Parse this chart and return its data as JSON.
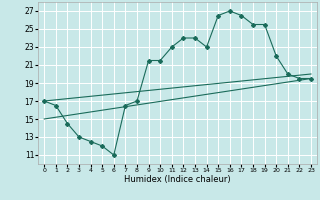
{
  "xlabel": "Humidex (Indice chaleur)",
  "bg_color": "#c8e8e8",
  "grid_color": "#ffffff",
  "line_color": "#1a6b5a",
  "curve_x": [
    0,
    1,
    2,
    3,
    4,
    5,
    6,
    7,
    8,
    9,
    10,
    11,
    12,
    13,
    14,
    15,
    16,
    17,
    18,
    19,
    20,
    21,
    22,
    23
  ],
  "curve_y": [
    17,
    16.5,
    14.5,
    13,
    12.5,
    12,
    11,
    16.5,
    17,
    21.5,
    21.5,
    23,
    24,
    24,
    23,
    26.5,
    27,
    26.5,
    25.5,
    25.5,
    22,
    20,
    19.5,
    19.5
  ],
  "line1_x": [
    0,
    23
  ],
  "line1_y": [
    17,
    20
  ],
  "line2_x": [
    0,
    23
  ],
  "line2_y": [
    15,
    19.5
  ],
  "xlim": [
    -0.5,
    23.5
  ],
  "ylim": [
    10,
    28
  ],
  "yticks": [
    11,
    13,
    15,
    17,
    19,
    21,
    23,
    25,
    27
  ],
  "xticks": [
    0,
    1,
    2,
    3,
    4,
    5,
    6,
    7,
    8,
    9,
    10,
    11,
    12,
    13,
    14,
    15,
    16,
    17,
    18,
    19,
    20,
    21,
    22,
    23
  ],
  "xtick_labels": [
    "0",
    "1",
    "2",
    "3",
    "4",
    "5",
    "6",
    "7",
    "8",
    "9",
    "10",
    "11",
    "12",
    "13",
    "14",
    "15",
    "16",
    "17",
    "18",
    "19",
    "20",
    "21",
    "22",
    "23"
  ]
}
